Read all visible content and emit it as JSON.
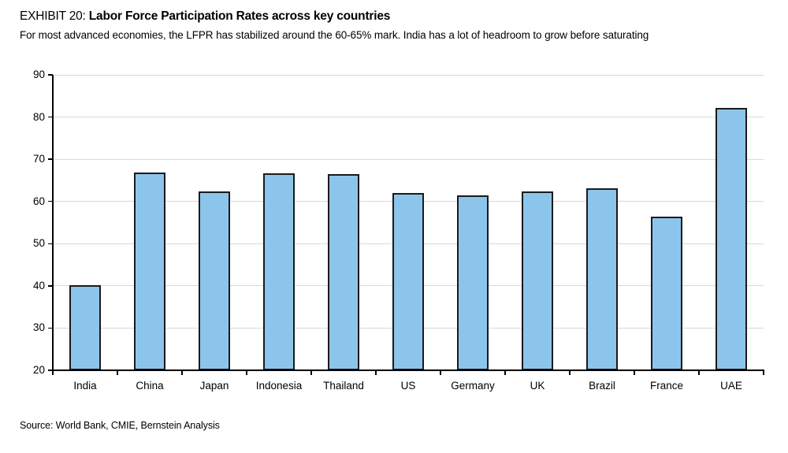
{
  "header": {
    "exhibit_label": "EXHIBIT 20:",
    "title": "Labor Force Participation Rates across key countries",
    "subtitle": "For most advanced economies, the LFPR has stabilized around the 60-65% mark. India has a lot of headroom to grow before saturating"
  },
  "footer": {
    "source": "Source: World Bank, CMIE, Bernstein Analysis"
  },
  "chart_data": {
    "type": "bar",
    "title": "Labor Force Participation Rates across key countries",
    "categories": [
      "India",
      "China",
      "Japan",
      "Indonesia",
      "Thailand",
      "US",
      "Germany",
      "UK",
      "Brazil",
      "France",
      "UAE"
    ],
    "values": [
      40.2,
      66.9,
      62.4,
      66.6,
      66.5,
      62.0,
      61.5,
      62.3,
      63.2,
      56.4,
      82.2
    ],
    "xlabel": "",
    "ylabel": "",
    "ylim": [
      20,
      90
    ],
    "ytick_step": 10,
    "ytick_labels": [
      "20",
      "30",
      "40",
      "50",
      "60",
      "70",
      "80",
      "90"
    ],
    "grid": "horizontal",
    "legend": "none",
    "colors": {
      "bar_fill": "#8CC5EB",
      "bar_border": "#1A1A1A",
      "gridline": "#D9D9D9",
      "axis": "#000000",
      "text": "#000000"
    }
  }
}
